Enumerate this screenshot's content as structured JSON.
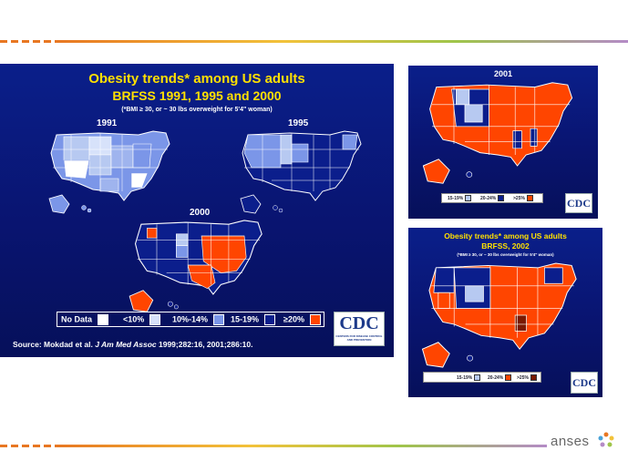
{
  "slide": {
    "logo_text": "anses",
    "colors": {
      "panel_bg": "#0a1f8a",
      "title_yellow": "#ffe000",
      "obese_red": "#ff4500",
      "dark_blue": "#0b1e8c",
      "mid_blue": "#7b96e8",
      "light_blue": "#b7c9f1"
    }
  },
  "main_panel": {
    "title": "Obesity trends* among US adults",
    "subtitle": "BRFSS 1991, 1995 and 2000",
    "note": "(*BMI ≥ 30, or ~ 30 lbs overweight for 5'4\" woman)",
    "map_labels": [
      "1991",
      "1995",
      "2000"
    ],
    "legend": [
      "No Data",
      "<10%",
      "10%-14%",
      "15-19%",
      "≥20%"
    ],
    "source_prefix": "Source: Mokdad et al.",
    "source_journal": "J Am Med Assoc",
    "source_suffix": "1999;282:16, 2001;286:10.",
    "cdc_text": "CDC",
    "cdc_sub": "CENTERS FOR DISEASE CONTROL AND PREVENTION"
  },
  "panel_2001": {
    "year": "2001",
    "legend": [
      "15-19%",
      "20-24%",
      ">25%"
    ],
    "cdc_text": "CDC"
  },
  "panel_2002": {
    "title": "Obesity trends* among US adults",
    "subtitle": "BRFSS, 2002",
    "note": "(*BMI ≥ 30, or ~ 30 lbs overweight for 5'4\" woman)",
    "legend": [
      "15-19%",
      "20-24%",
      ">25%"
    ],
    "cdc_text": "CDC"
  }
}
